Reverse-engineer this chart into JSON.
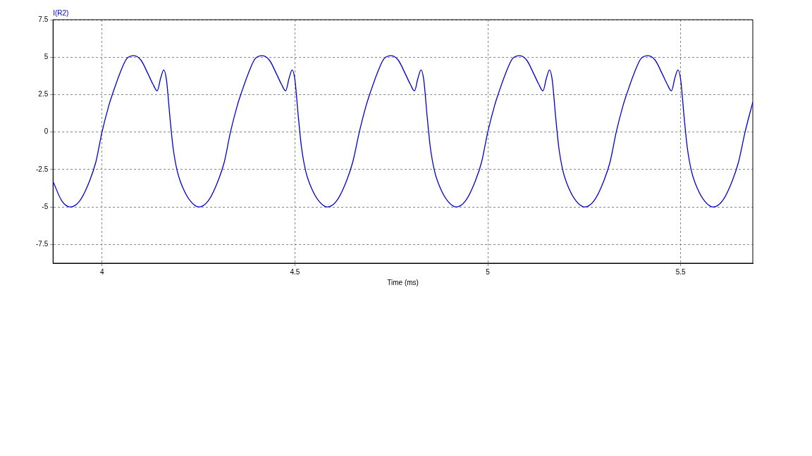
{
  "chart_data": {
    "type": "line",
    "xlabel": "Time (ms)",
    "ylabel": "I(R2)",
    "xlim": [
      3.873,
      5.687
    ],
    "xticks": [
      4,
      4.5,
      5,
      5.5
    ],
    "ylim": [
      -8.75,
      7.5
    ],
    "yticks": [
      -7.5,
      -5,
      -2.5,
      0,
      2.5,
      5,
      7.5
    ],
    "grid": true,
    "legend": false,
    "marker": "none",
    "line_style": "solid",
    "series": [
      {
        "color": "#0000cc",
        "x": [
          3.873,
          3.896,
          3.918,
          3.942,
          3.964,
          3.984,
          4.0,
          4.018,
          4.028,
          4.046,
          4.064,
          4.083,
          4.101,
          4.119,
          4.132,
          4.143,
          4.152,
          4.16,
          4.167,
          4.176,
          4.184,
          4.195,
          4.211,
          4.229,
          4.251,
          4.275,
          4.297,
          4.317,
          4.333,
          4.351,
          4.361,
          4.379,
          4.397,
          4.416,
          4.434,
          4.452,
          4.465,
          4.476,
          4.485,
          4.493,
          4.5,
          4.509,
          4.517,
          4.528,
          4.544,
          4.562,
          4.584,
          4.608,
          4.63,
          4.65,
          4.667,
          4.685,
          4.695,
          4.713,
          4.731,
          4.75,
          4.768,
          4.786,
          4.799,
          4.81,
          4.819,
          4.827,
          4.834,
          4.843,
          4.851,
          4.862,
          4.878,
          4.896,
          4.918,
          4.942,
          4.964,
          4.984,
          5.0,
          5.018,
          5.028,
          5.046,
          5.064,
          5.083,
          5.101,
          5.119,
          5.132,
          5.143,
          5.152,
          5.16,
          5.167,
          5.176,
          5.184,
          5.195,
          5.211,
          5.229,
          5.251,
          5.275,
          5.297,
          5.317,
          5.333,
          5.351,
          5.361,
          5.379,
          5.397,
          5.416,
          5.434,
          5.452,
          5.465,
          5.476,
          5.485,
          5.493,
          5.5,
          5.509,
          5.517,
          5.528,
          5.544,
          5.562,
          5.584,
          5.608,
          5.63,
          5.65,
          5.667,
          5.687
        ],
        "values": [
          -3.3,
          -4.6,
          -5.0,
          -4.6,
          -3.5,
          -2.0,
          0,
          1.8,
          2.6,
          3.9,
          4.9,
          5.1,
          4.8,
          3.9,
          3.2,
          2.75,
          3.6,
          4.15,
          3.5,
          1.0,
          -1.0,
          -2.6,
          -3.8,
          -4.6,
          -5.0,
          -4.6,
          -3.5,
          -2.0,
          0,
          1.8,
          2.6,
          3.9,
          4.9,
          5.1,
          4.8,
          3.9,
          3.2,
          2.75,
          3.6,
          4.15,
          3.5,
          1.0,
          -1.0,
          -2.6,
          -3.8,
          -4.6,
          -5.0,
          -4.6,
          -3.5,
          -2.0,
          0,
          1.8,
          2.6,
          3.9,
          4.9,
          5.1,
          4.8,
          3.9,
          3.2,
          2.75,
          3.6,
          4.15,
          3.5,
          1.0,
          -1.0,
          -2.6,
          -3.8,
          -4.6,
          -5.0,
          -4.6,
          -3.5,
          -2.0,
          0,
          1.8,
          2.6,
          3.9,
          4.9,
          5.1,
          4.8,
          3.9,
          3.2,
          2.75,
          3.6,
          4.15,
          3.5,
          1.0,
          -1.0,
          -2.6,
          -3.8,
          -4.6,
          -5.0,
          -4.6,
          -3.5,
          -2.0,
          0,
          1.8,
          2.6,
          3.9,
          4.9,
          5.1,
          4.8,
          3.9,
          3.2,
          2.75,
          3.6,
          4.15,
          3.5,
          1.0,
          -1.0,
          -2.6,
          -3.8,
          -4.6,
          -5.0,
          -4.6,
          -3.5,
          -2.0,
          0,
          2.0
        ]
      }
    ]
  }
}
